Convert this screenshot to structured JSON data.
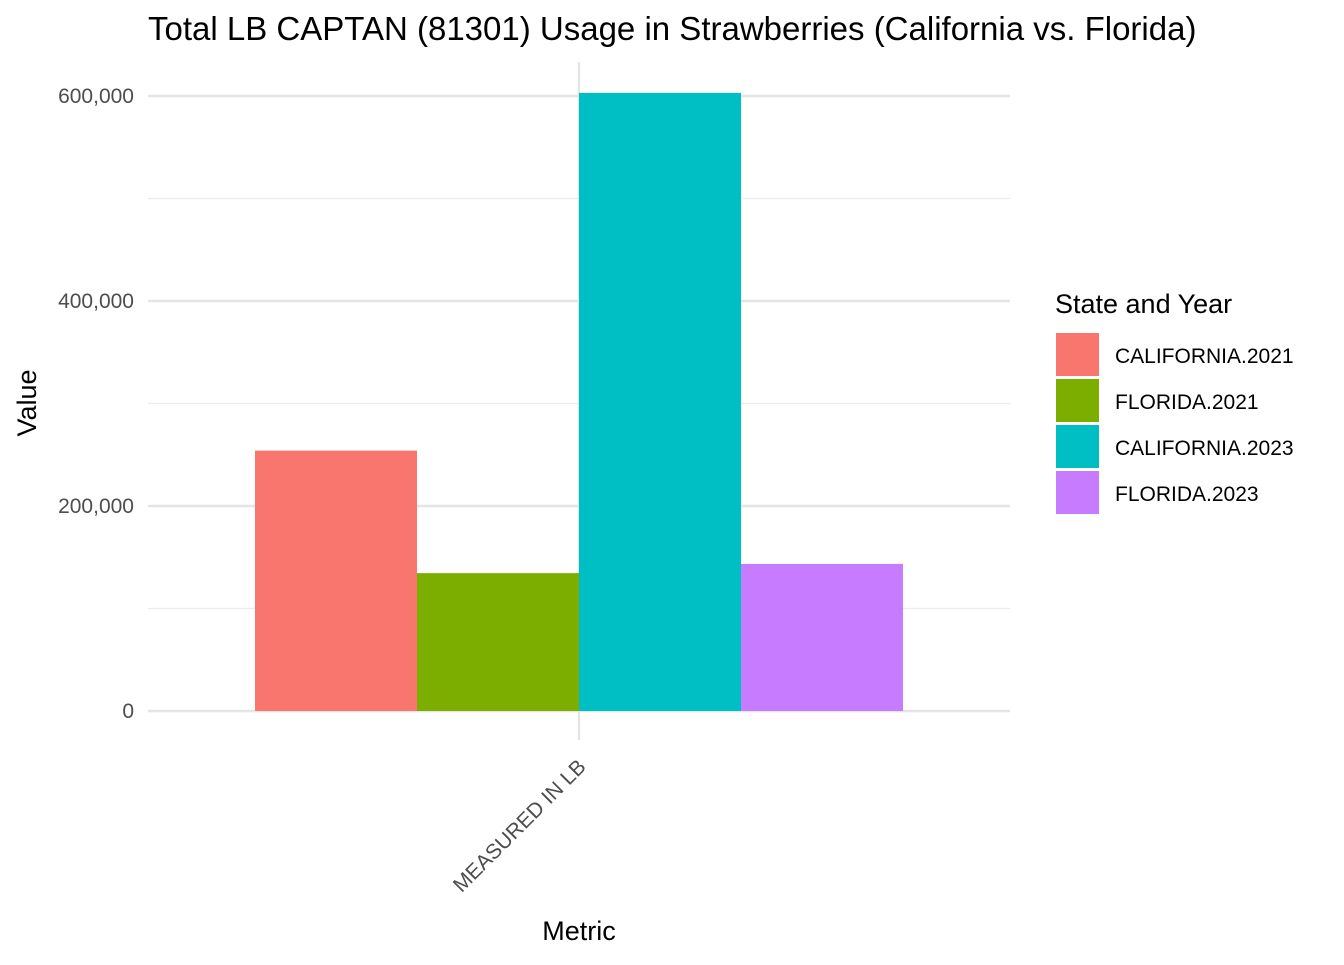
{
  "chart_data": {
    "type": "bar",
    "title": "Total LB CAPTAN (81301) Usage in Strawberries (California vs. Florida)",
    "xlabel": "Metric",
    "ylabel": "Value",
    "categories": [
      "MEASURED IN LB"
    ],
    "series": [
      {
        "name": "CALIFORNIA.2021",
        "values": [
          254000
        ],
        "color": "#F8766D"
      },
      {
        "name": "FLORIDA.2021",
        "values": [
          134500
        ],
        "color": "#7CAE00"
      },
      {
        "name": "CALIFORNIA.2023",
        "values": [
          603000
        ],
        "color": "#00BFC4"
      },
      {
        "name": "FLORIDA.2023",
        "values": [
          143500
        ],
        "color": "#C77CFF"
      }
    ],
    "ylim": [
      0,
      630000
    ],
    "yticks": [
      0,
      200000,
      400000,
      600000
    ],
    "ytick_labels": [
      "0",
      "200,000",
      "400,000",
      "600,000"
    ],
    "grid": true,
    "legend": {
      "title": "State and Year",
      "position": "right"
    }
  }
}
